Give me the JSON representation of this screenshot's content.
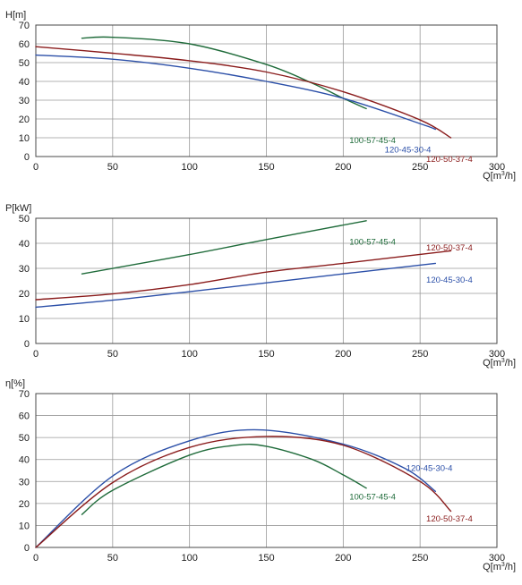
{
  "colors": {
    "100-57-45-4": "#1f6b3a",
    "120-45-30-4": "#2b4fa8",
    "120-50-37-4": "#8a1c1c"
  },
  "chart_data": [
    {
      "type": "line",
      "ylabel_main": "H",
      "ylabel_unit": "[m]",
      "xlabel_main": "Q[m",
      "xlabel_sup": "3",
      "xlabel_tail": "/h]",
      "xlim": [
        0,
        300
      ],
      "ylim": [
        0,
        70
      ],
      "xticks": [
        "0",
        "50",
        "100",
        "150",
        "200",
        "250",
        "300"
      ],
      "yticks": [
        "0",
        "10",
        "20",
        "30",
        "40",
        "50",
        "60",
        "70"
      ],
      "grid": true,
      "series": [
        {
          "name": "100-57-45-4",
          "x": [
            30,
            50,
            100,
            150,
            180,
            200,
            215
          ],
          "y": [
            63,
            63.5,
            60,
            49,
            39,
            31,
            25.5
          ]
        },
        {
          "name": "120-45-30-4",
          "x": [
            0,
            50,
            100,
            150,
            200,
            250,
            260
          ],
          "y": [
            54,
            51.8,
            47,
            40,
            31,
            17.5,
            14.5
          ]
        },
        {
          "name": "120-50-37-4",
          "x": [
            0,
            50,
            100,
            150,
            200,
            250,
            270
          ],
          "y": [
            58.5,
            55,
            51,
            45,
            34.5,
            19.5,
            10
          ]
        }
      ],
      "annotations": [
        {
          "text": "100-57-45-4",
          "series": "100-57-45-4",
          "x": 204,
          "y": 8.5
        },
        {
          "text": "120-45-30-4",
          "series": "120-45-30-4",
          "x": 227,
          "y": 3.5
        },
        {
          "text": "120-50-37-4",
          "series": "120-50-37-4",
          "x": 254,
          "y": -1.5
        }
      ]
    },
    {
      "type": "line",
      "ylabel_main": "P",
      "ylabel_unit": "[kW]",
      "xlabel_main": "Q[m",
      "xlabel_sup": "3",
      "xlabel_tail": "/h]",
      "xlim": [
        0,
        300
      ],
      "ylim": [
        0,
        50
      ],
      "xticks": [
        "0",
        "50",
        "100",
        "150",
        "200",
        "250",
        "300"
      ],
      "yticks": [
        "0",
        "10",
        "20",
        "30",
        "40",
        "50"
      ],
      "grid": true,
      "series": [
        {
          "name": "100-57-45-4",
          "x": [
            30,
            100,
            150,
            215
          ],
          "y": [
            27.8,
            35.5,
            41.5,
            49
          ]
        },
        {
          "name": "120-45-30-4",
          "x": [
            0,
            50,
            100,
            150,
            200,
            260
          ],
          "y": [
            14.5,
            17.3,
            20.7,
            24.2,
            27.8,
            32
          ]
        },
        {
          "name": "120-50-37-4",
          "x": [
            0,
            50,
            100,
            150,
            200,
            270
          ],
          "y": [
            17.5,
            19.8,
            23.5,
            28.5,
            32,
            37
          ]
        }
      ],
      "annotations": [
        {
          "text": "100-57-45-4",
          "series": "100-57-45-4",
          "x": 204,
          "y": 40.5
        },
        {
          "text": "120-50-37-4",
          "series": "120-50-37-4",
          "x": 254,
          "y": 38.3
        },
        {
          "text": "120-45-30-4",
          "series": "120-45-30-4",
          "x": 254,
          "y": 25.4
        }
      ]
    },
    {
      "type": "line",
      "ylabel_main": "η",
      "ylabel_unit": "[%]",
      "xlabel_main": "Q[m",
      "xlabel_sup": "3",
      "xlabel_tail": "/h]",
      "xlim": [
        0,
        300
      ],
      "ylim": [
        0,
        70
      ],
      "xticks": [
        "0",
        "50",
        "100",
        "150",
        "200",
        "250",
        "300"
      ],
      "yticks": [
        "0",
        "10",
        "20",
        "30",
        "40",
        "50",
        "60",
        "70"
      ],
      "grid": true,
      "series": [
        {
          "name": "100-57-45-4",
          "x": [
            30,
            50,
            100,
            130,
            150,
            180,
            200,
            215
          ],
          "y": [
            15,
            26,
            42,
            46.5,
            46,
            40,
            33,
            27
          ]
        },
        {
          "name": "120-45-30-4",
          "x": [
            0,
            50,
            100,
            145,
            200,
            240,
            260
          ],
          "y": [
            0,
            32.5,
            48.5,
            53.5,
            47,
            36,
            25.5
          ]
        },
        {
          "name": "120-50-37-4",
          "x": [
            0,
            50,
            100,
            150,
            200,
            250,
            270
          ],
          "y": [
            0,
            29.5,
            45.5,
            50.5,
            46.5,
            30,
            16.5
          ]
        }
      ],
      "annotations": [
        {
          "text": "120-45-30-4",
          "series": "120-45-30-4",
          "x": 241,
          "y": 36
        },
        {
          "text": "100-57-45-4",
          "series": "100-57-45-4",
          "x": 204,
          "y": 23
        },
        {
          "text": "120-50-37-4",
          "series": "120-50-37-4",
          "x": 254,
          "y": 13
        }
      ]
    }
  ]
}
